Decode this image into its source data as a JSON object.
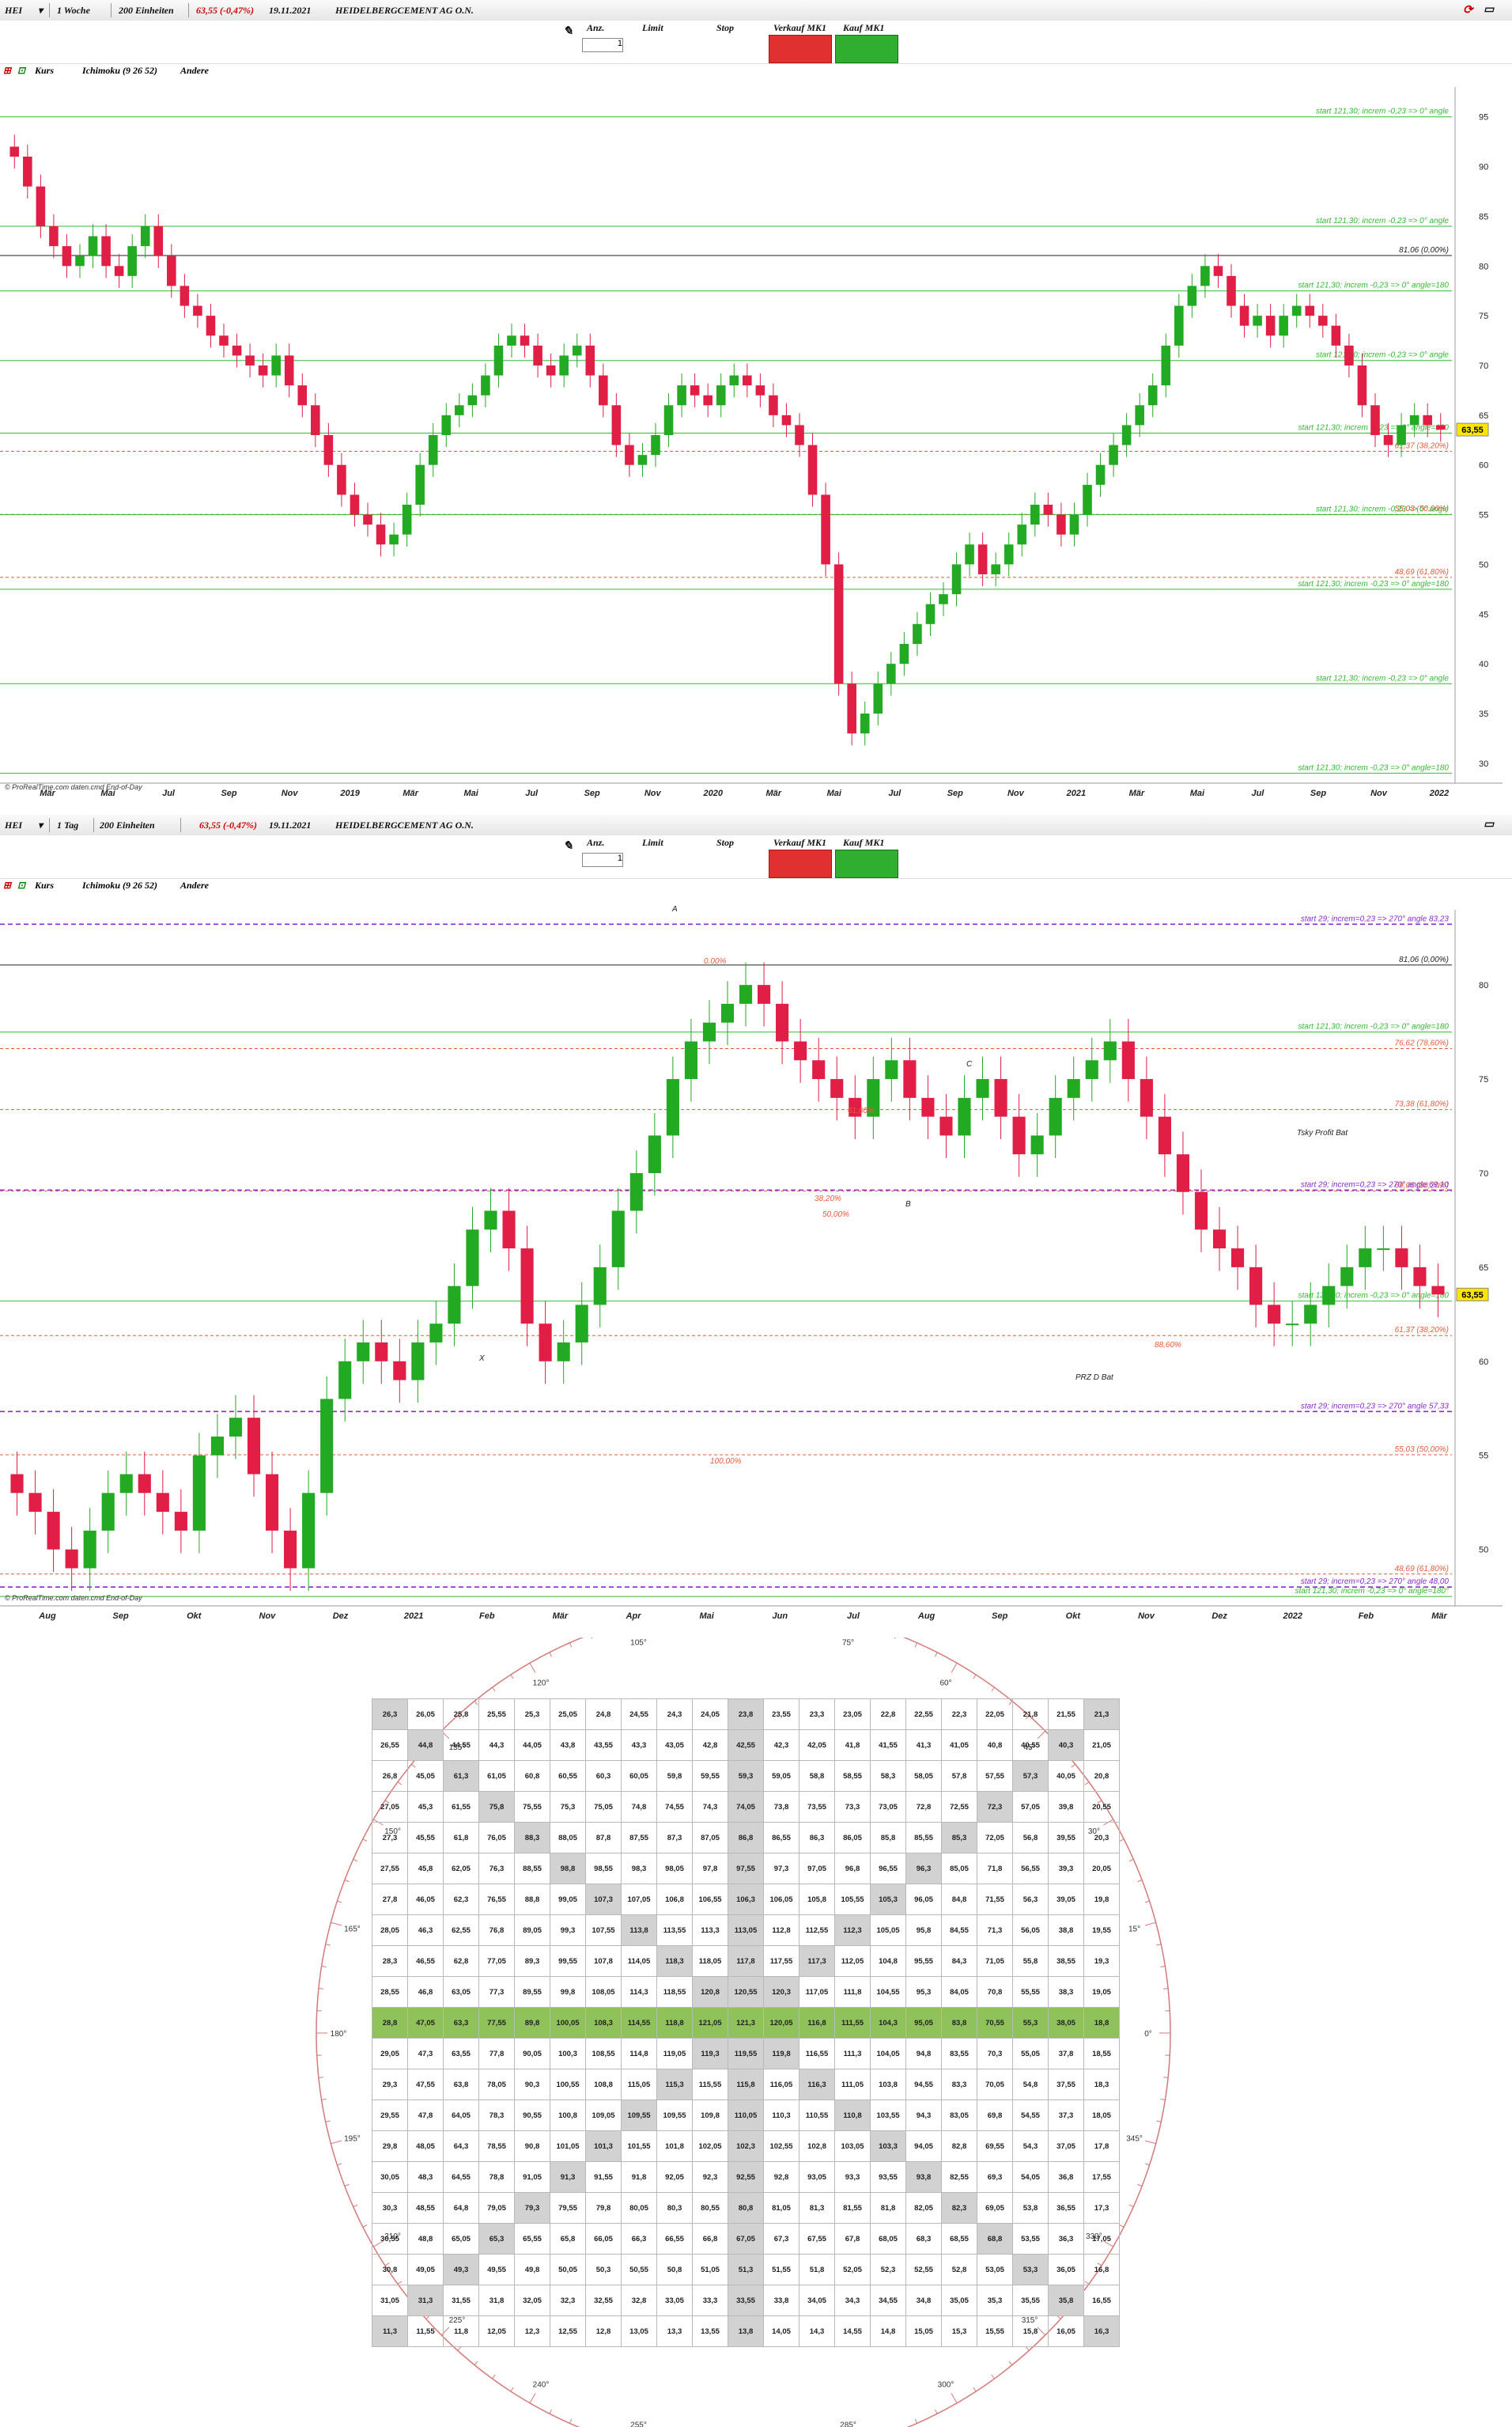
{
  "chart_data": [
    {
      "type": "candlestick",
      "symbol": "HEI",
      "interval": "1 Woche",
      "bars": "200 Einheiten",
      "quote": "63,55 (-0,47%)",
      "date": "19.11.2021",
      "name": "HEIDELBERGCEMENT AG O.N.",
      "indicators": [
        "Kurs",
        "Ichimoku (9 26 52)",
        "Andere"
      ],
      "y_ticks": [
        30,
        35,
        40,
        45,
        50,
        55,
        60,
        65,
        70,
        75,
        80,
        85,
        90,
        95
      ],
      "ylim": [
        28,
        98
      ],
      "x_ticks": [
        "Mär",
        "Mai",
        "Jul",
        "Sep",
        "Nov",
        "2019",
        "Mär",
        "Mai",
        "Jul",
        "Sep",
        "Nov",
        "2020",
        "Mär",
        "Mai",
        "Jul",
        "Sep",
        "Nov",
        "2021",
        "Mär",
        "Mai",
        "Jul",
        "Sep",
        "Nov",
        "2022"
      ],
      "series_close": [
        91,
        88,
        84,
        82,
        80,
        81,
        83,
        80,
        79,
        82,
        84,
        81,
        78,
        76,
        75,
        73,
        72,
        71,
        70,
        69,
        71,
        68,
        66,
        63,
        60,
        57,
        55,
        54,
        52,
        53,
        56,
        60,
        63,
        65,
        66,
        67,
        69,
        72,
        73,
        72,
        70,
        69,
        71,
        72,
        69,
        66,
        62,
        60,
        61,
        63,
        66,
        68,
        67,
        66,
        68,
        69,
        68,
        67,
        65,
        64,
        62,
        57,
        50,
        38,
        33,
        35,
        38,
        40,
        42,
        44,
        46,
        47,
        50,
        52,
        49,
        50,
        52,
        54,
        56,
        55,
        53,
        55,
        58,
        60,
        62,
        64,
        66,
        68,
        72,
        76,
        78,
        80,
        79,
        76,
        74,
        75,
        73,
        75,
        76,
        75,
        74,
        72,
        70,
        66,
        63,
        62,
        64,
        65,
        64,
        63.55
      ],
      "lines": [
        {
          "label": "81,06 (0,00%)",
          "value": 81.06,
          "color": "#222222"
        },
        {
          "label": "61,37 (38,20%)",
          "value": 61.37,
          "color": "#e85a3a"
        },
        {
          "label": "55,03 (50,00%)",
          "value": 55.03,
          "color": "#e85a3a"
        },
        {
          "label": "48,69 (61,80%)",
          "value": 48.69,
          "color": "#e85a3a"
        },
        {
          "label": "start 121,30; increm -0,23 => 0° angle",
          "value": 95.0,
          "color": "#33bb33"
        },
        {
          "label": "start 121,30; increm -0,23 => 0° angle",
          "value": 84.0,
          "color": "#33bb33"
        },
        {
          "label": "start 121,30; increm -0,23 => 0° angle",
          "value": 70.5,
          "color": "#33bb33"
        },
        {
          "label": "start 121,30; increm -0,23 => 0° angle",
          "value": 55.0,
          "color": "#33bb33"
        },
        {
          "label": "start 121,30; increm -0,23 => 0° angle",
          "value": 38.0,
          "color": "#33bb33"
        },
        {
          "label": "start 121,30; increm -0,23 => 0° angle=180",
          "value": 77.5,
          "color": "#33bb33"
        },
        {
          "label": "start 121,30; increm -0,23 => 0° angle=180",
          "value": 63.2,
          "color": "#33bb33"
        },
        {
          "label": "start 121,30; increm -0,23 => 0° angle=180",
          "value": 47.5,
          "color": "#33bb33"
        },
        {
          "label": "start 121,30; increm -0,23 => 0° angle=180",
          "value": 29.0,
          "color": "#33bb33"
        }
      ],
      "last_price_label": "63,55"
    },
    {
      "type": "candlestick",
      "symbol": "HEI",
      "interval": "1 Tag",
      "bars": "200 Einheiten",
      "quote": "63,55 (-0,47%)",
      "date": "19.11.2021",
      "name": "HEIDELBERGCEMENT AG O.N.",
      "indicators": [
        "Kurs",
        "Ichimoku (9 26 52)",
        "Andere"
      ],
      "y_ticks": [
        50,
        55,
        60,
        65,
        70,
        75,
        80
      ],
      "ylim": [
        47,
        84
      ],
      "x_ticks": [
        "Aug",
        "Sep",
        "Okt",
        "Nov",
        "Dez",
        "2021",
        "Feb",
        "Mär",
        "Apr",
        "Mai",
        "Jun",
        "Jul",
        "Aug",
        "Sep",
        "Okt",
        "Nov",
        "Dez",
        "2022",
        "Feb",
        "Mär"
      ],
      "series_close": [
        53,
        52,
        50,
        49,
        51,
        53,
        54,
        53,
        52,
        51,
        55,
        56,
        57,
        54,
        51,
        49,
        53,
        58,
        60,
        61,
        60,
        59,
        61,
        62,
        64,
        67,
        68,
        66,
        62,
        60,
        61,
        63,
        65,
        68,
        70,
        72,
        75,
        77,
        78,
        79,
        80,
        79,
        77,
        76,
        75,
        74,
        73,
        75,
        76,
        74,
        73,
        72,
        74,
        75,
        73,
        71,
        72,
        74,
        75,
        76,
        77,
        75,
        73,
        71,
        69,
        67,
        66,
        65,
        63,
        62,
        62,
        63,
        64,
        65,
        66,
        66,
        65,
        64,
        63.55
      ],
      "lines": [
        {
          "label": "81,06 (0,00%)",
          "value": 81.06,
          "color": "#222222"
        },
        {
          "label": "76,62 (78,60%)",
          "value": 76.62,
          "color": "#e85a3a"
        },
        {
          "label": "73,38 (61,80%)",
          "value": 73.38,
          "color": "#e85a3a"
        },
        {
          "label": "69,05 (38,20%)",
          "value": 69.05,
          "color": "#e85a3a"
        },
        {
          "label": "61,37 (38,20%)",
          "value": 61.37,
          "color": "#e85a3a"
        },
        {
          "label": "55,03 (50,00%)",
          "value": 55.03,
          "color": "#e85a3a"
        },
        {
          "label": "48,69 (61,80%)",
          "value": 48.69,
          "color": "#e85a3a"
        },
        {
          "label": "start 29; increm=0,23 => 270° angle 83,23",
          "value": 83.23,
          "color": "#8a2bd2"
        },
        {
          "label": "start 29; increm=0,23 => 270° angle 69,10",
          "value": 69.1,
          "color": "#8a2bd2"
        },
        {
          "label": "start 29; increm=0,23 => 270° angle 57,33",
          "value": 57.33,
          "color": "#8a2bd2"
        },
        {
          "label": "start 29; increm=0,23 => 270° angle 48,00",
          "value": 48.0,
          "color": "#8a2bd2"
        },
        {
          "label": "start 121,30; increm -0,23 => 0° angle=180",
          "value": 77.5,
          "color": "#33bb33"
        },
        {
          "label": "start 121,30; increm -0,23 => 0° angle=180",
          "value": 63.2,
          "color": "#33bb33"
        },
        {
          "label": "start 121,30; increm -0,23 => 0° angle=180°",
          "value": 47.5,
          "color": "#33bb33"
        }
      ],
      "annotations": [
        "A",
        "B",
        "C",
        "X",
        "PRZ D Bat",
        "Tsky Profit Bat",
        "0.00%",
        "100,00%",
        "61,80%",
        "38,20%",
        "50,00%",
        "88,60%"
      ],
      "last_price_label": "63,55"
    },
    {
      "type": "table",
      "title": "Square of Nine",
      "rows": [
        [
          "26,3",
          "26,05",
          "25,8",
          "25,55",
          "25,3",
          "25,05",
          "24,8",
          "24,55",
          "24,3",
          "24,05",
          "23,8",
          "23,55",
          "23,3",
          "23,05",
          "22,8",
          "22,55",
          "22,3",
          "22,05",
          "21,8",
          "21,55",
          "21,3"
        ],
        [
          "26,55",
          "44,8",
          "44,55",
          "44,3",
          "44,05",
          "43,8",
          "43,55",
          "43,3",
          "43,05",
          "42,8",
          "42,55",
          "42,3",
          "42,05",
          "41,8",
          "41,55",
          "41,3",
          "41,05",
          "40,8",
          "40,55",
          "40,3",
          "21,05"
        ],
        [
          "26,8",
          "45,05",
          "61,3",
          "61,05",
          "60,8",
          "60,55",
          "60,3",
          "60,05",
          "59,8",
          "59,55",
          "59,3",
          "59,05",
          "58,8",
          "58,55",
          "58,3",
          "58,05",
          "57,8",
          "57,55",
          "57,3",
          "40,05",
          "20,8"
        ],
        [
          "27,05",
          "45,3",
          "61,55",
          "75,8",
          "75,55",
          "75,3",
          "75,05",
          "74,8",
          "74,55",
          "74,3",
          "74,05",
          "73,8",
          "73,55",
          "73,3",
          "73,05",
          "72,8",
          "72,55",
          "72,3",
          "57,05",
          "39,8",
          "20,55"
        ],
        [
          "27,3",
          "45,55",
          "61,8",
          "76,05",
          "88,3",
          "88,05",
          "87,8",
          "87,55",
          "87,3",
          "87,05",
          "86,8",
          "86,55",
          "86,3",
          "86,05",
          "85,8",
          "85,55",
          "85,3",
          "72,05",
          "56,8",
          "39,55",
          "20,3"
        ],
        [
          "27,55",
          "45,8",
          "62,05",
          "76,3",
          "88,55",
          "98,8",
          "98,55",
          "98,3",
          "98,05",
          "97,8",
          "97,55",
          "97,3",
          "97,05",
          "96,8",
          "96,55",
          "96,3",
          "85,05",
          "71,8",
          "56,55",
          "39,3",
          "20,05"
        ],
        [
          "27,8",
          "46,05",
          "62,3",
          "76,55",
          "88,8",
          "99,05",
          "107,3",
          "107,05",
          "106,8",
          "106,55",
          "106,3",
          "106,05",
          "105,8",
          "105,55",
          "105,3",
          "96,05",
          "84,8",
          "71,55",
          "56,3",
          "39,05",
          "19,8"
        ],
        [
          "28,05",
          "46,3",
          "62,55",
          "76,8",
          "89,05",
          "99,3",
          "107,55",
          "113,8",
          "113,55",
          "113,3",
          "113,05",
          "112,8",
          "112,55",
          "112,3",
          "105,05",
          "95,8",
          "84,55",
          "71,3",
          "56,05",
          "38,8",
          "19,55"
        ],
        [
          "28,3",
          "46,55",
          "62,8",
          "77,05",
          "89,3",
          "99,55",
          "107,8",
          "114,05",
          "118,3",
          "118,05",
          "117,8",
          "117,55",
          "117,3",
          "112,05",
          "104,8",
          "95,55",
          "84,3",
          "71,05",
          "55,8",
          "38,55",
          "19,3"
        ],
        [
          "28,55",
          "46,8",
          "63,05",
          "77,3",
          "89,55",
          "99,8",
          "108,05",
          "114,3",
          "118,55",
          "120,8",
          "120,55",
          "120,3",
          "117,05",
          "111,8",
          "104,55",
          "95,3",
          "84,05",
          "70,8",
          "55,55",
          "38,3",
          "19,05"
        ],
        [
          "28,8",
          "47,05",
          "63,3",
          "77,55",
          "89,8",
          "100,05",
          "108,3",
          "114,55",
          "118,8",
          "121,05",
          "121,3",
          "120,05",
          "116,8",
          "111,55",
          "104,3",
          "95,05",
          "83,8",
          "70,55",
          "55,3",
          "38,05",
          "18,8"
        ],
        [
          "29,05",
          "47,3",
          "63,55",
          "77,8",
          "90,05",
          "100,3",
          "108,55",
          "114,8",
          "119,05",
          "119,3",
          "119,55",
          "119,8",
          "116,55",
          "111,3",
          "104,05",
          "94,8",
          "83,55",
          "70,3",
          "55,05",
          "37,8",
          "18,55"
        ],
        [
          "29,3",
          "47,55",
          "63,8",
          "78,05",
          "90,3",
          "100,55",
          "108,8",
          "115,05",
          "115,3",
          "115,55",
          "115,8",
          "116,05",
          "116,3",
          "111,05",
          "103,8",
          "94,55",
          "83,3",
          "70,05",
          "54,8",
          "37,55",
          "18,3"
        ],
        [
          "29,55",
          "47,8",
          "64,05",
          "78,3",
          "90,55",
          "100,8",
          "109,05",
          "109,55",
          "109,55",
          "109,8",
          "110,05",
          "110,3",
          "110,55",
          "110,8",
          "103,55",
          "94,3",
          "83,05",
          "69,8",
          "54,55",
          "37,3",
          "18,05"
        ],
        [
          "29,8",
          "48,05",
          "64,3",
          "78,55",
          "90,8",
          "101,05",
          "101,3",
          "101,55",
          "101,8",
          "102,05",
          "102,3",
          "102,55",
          "102,8",
          "103,05",
          "103,3",
          "94,05",
          "82,8",
          "69,55",
          "54,3",
          "37,05",
          "17,8"
        ],
        [
          "30,05",
          "48,3",
          "64,55",
          "78,8",
          "91,05",
          "91,3",
          "91,55",
          "91,8",
          "92,05",
          "92,3",
          "92,55",
          "92,8",
          "93,05",
          "93,3",
          "93,55",
          "93,8",
          "82,55",
          "69,3",
          "54,05",
          "36,8",
          "17,55"
        ],
        [
          "30,3",
          "48,55",
          "64,8",
          "79,05",
          "79,3",
          "79,55",
          "79,8",
          "80,05",
          "80,3",
          "80,55",
          "80,8",
          "81,05",
          "81,3",
          "81,55",
          "81,8",
          "82,05",
          "82,3",
          "69,05",
          "53,8",
          "36,55",
          "17,3"
        ],
        [
          "30,55",
          "48,8",
          "65,05",
          "65,3",
          "65,55",
          "65,8",
          "66,05",
          "66,3",
          "66,55",
          "66,8",
          "67,05",
          "67,3",
          "67,55",
          "67,8",
          "68,05",
          "68,3",
          "68,55",
          "68,8",
          "53,55",
          "36,3",
          "17,05"
        ],
        [
          "30,8",
          "49,05",
          "49,3",
          "49,55",
          "49,8",
          "50,05",
          "50,3",
          "50,55",
          "50,8",
          "51,05",
          "51,3",
          "51,55",
          "51,8",
          "52,05",
          "52,3",
          "52,55",
          "52,8",
          "53,05",
          "53,3",
          "36,05",
          "16,8"
        ],
        [
          "31,05",
          "31,3",
          "31,55",
          "31,8",
          "32,05",
          "32,3",
          "32,55",
          "32,8",
          "33,05",
          "33,3",
          "33,55",
          "33,8",
          "34,05",
          "34,3",
          "34,55",
          "34,8",
          "35,05",
          "35,3",
          "35,55",
          "35,8",
          "16,55"
        ],
        [
          "11,3",
          "11,55",
          "11,8",
          "12,05",
          "12,3",
          "12,55",
          "12,8",
          "13,05",
          "13,3",
          "13,55",
          "13,8",
          "14,05",
          "14,3",
          "14,55",
          "14,8",
          "15,05",
          "15,3",
          "15,55",
          "15,8",
          "16,05",
          "16,3"
        ]
      ],
      "angle_labels": [
        "0°",
        "15°",
        "30°",
        "45°",
        "60°",
        "75°",
        "90°",
        "105°",
        "120°",
        "135°",
        "150°",
        "165°",
        "180°",
        "195°",
        "210°",
        "225°",
        "240°",
        "255°",
        "270°",
        "285°",
        "300°",
        "315°",
        "330°",
        "345°"
      ]
    }
  ],
  "copyright": "© ProRealTime.com  daten.cmd End-of-Day"
}
